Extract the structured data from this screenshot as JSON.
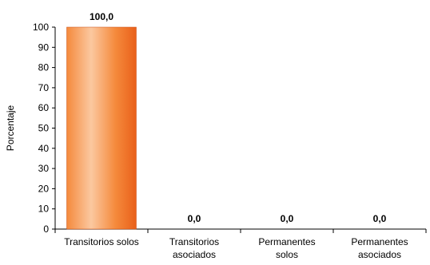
{
  "chart_data": {
    "type": "bar",
    "categories": [
      [
        "Transitorios solos"
      ],
      [
        "Transitorios",
        "asociados"
      ],
      [
        "Permanentes",
        "solos"
      ],
      [
        "Permanentes",
        "asociados"
      ]
    ],
    "values": [
      100.0,
      0.0,
      0.0,
      0.0
    ],
    "data_labels": [
      "100,0",
      "0,0",
      "0,0",
      "0,0"
    ],
    "title": "",
    "xlabel": "",
    "ylabel": "Porcentaje",
    "ylim": [
      0,
      100
    ],
    "yticks": [
      0,
      10,
      20,
      30,
      40,
      50,
      60,
      70,
      80,
      90,
      100
    ],
    "grid": false,
    "legend": "none",
    "colors": {
      "bar_light": "#fbc8a0",
      "bar_mid": "#f58a3c",
      "bar_dark": "#e9601a",
      "bar_edge": "#c84a10",
      "axis": "#000000"
    }
  }
}
